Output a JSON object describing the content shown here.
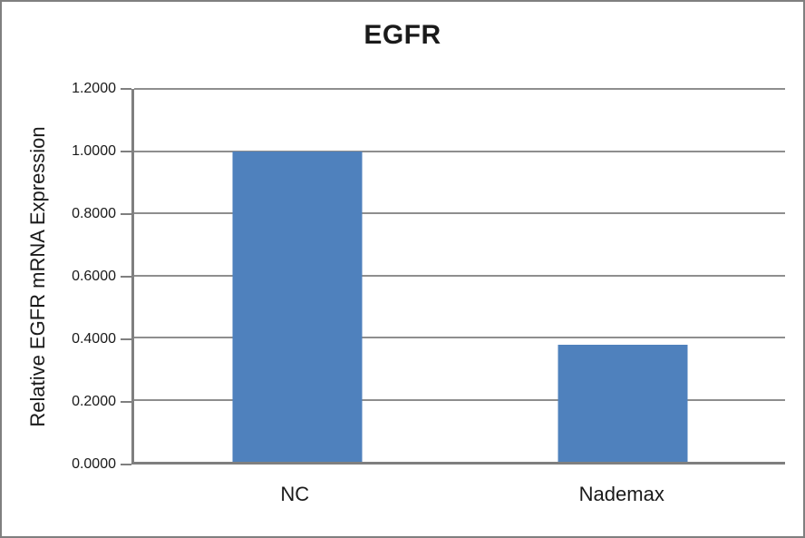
{
  "chart_data": {
    "type": "bar",
    "title": "EGFR",
    "ylabel": "Relative EGFR mRNA Expression",
    "xlabel": "",
    "categories": [
      "NC",
      "Nademax"
    ],
    "values": [
      1.0,
      0.377
    ],
    "ylim": [
      0,
      1.2
    ],
    "ytick_step": 0.2,
    "ytick_decimals": 4,
    "ytick_labels": [
      "0.0000",
      "0.2000",
      "0.4000",
      "0.6000",
      "0.8000",
      "1.0000",
      "1.2000"
    ],
    "grid": true,
    "legend_position": "none",
    "bar_color": "#4F81BD",
    "gridline_color": "#8E8E8E",
    "axis_color": "#7F7F7F",
    "border_color": "#7F7F7F",
    "text_color": "#1A1A1A"
  }
}
